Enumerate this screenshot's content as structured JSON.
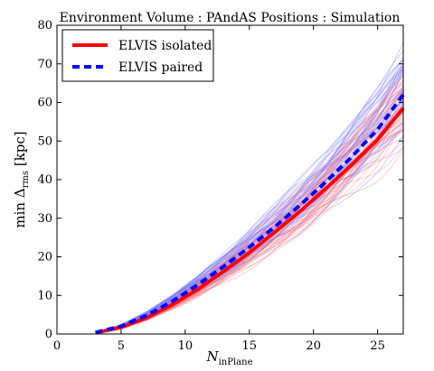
{
  "chart_data": {
    "type": "line",
    "title": "Environment   Volume : PAndAS   Positions : Simulation",
    "xlabel": "N",
    "xlabel_sub": "inPlane",
    "ylabel_prefix": "min Δ",
    "ylabel_sub": "rms",
    "ylabel_suffix": " [kpc]",
    "xlim": [
      0,
      27
    ],
    "ylim": [
      0,
      80
    ],
    "xticks": [
      0,
      5,
      10,
      15,
      20,
      25
    ],
    "yticks": [
      0,
      10,
      20,
      30,
      40,
      50,
      60,
      70,
      80
    ],
    "legend_position": "top-left",
    "series": [
      {
        "name": "ELVIS isolated",
        "color": "#ff0000",
        "style": "solid",
        "x": [
          3,
          5,
          7,
          9,
          11,
          13,
          15,
          17,
          19,
          21,
          23,
          25,
          27
        ],
        "values": [
          0.3,
          1.7,
          4.2,
          7.6,
          11.6,
          16.2,
          21.1,
          26.4,
          31.9,
          37.8,
          43.9,
          50.4,
          58.5
        ]
      },
      {
        "name": "ELVIS paired",
        "color": "#0000ff",
        "style": "dashed",
        "x": [
          3,
          5,
          7,
          9,
          11,
          13,
          15,
          17,
          19,
          21,
          23,
          25,
          27
        ],
        "values": [
          0.4,
          2.0,
          4.8,
          8.5,
          12.8,
          17.5,
          22.5,
          27.8,
          33.5,
          39.5,
          46.0,
          53.0,
          62.0
        ]
      }
    ],
    "realizations_note_colors": {
      "red_band": "#ff7777",
      "blue_band": "#7777ff"
    }
  }
}
